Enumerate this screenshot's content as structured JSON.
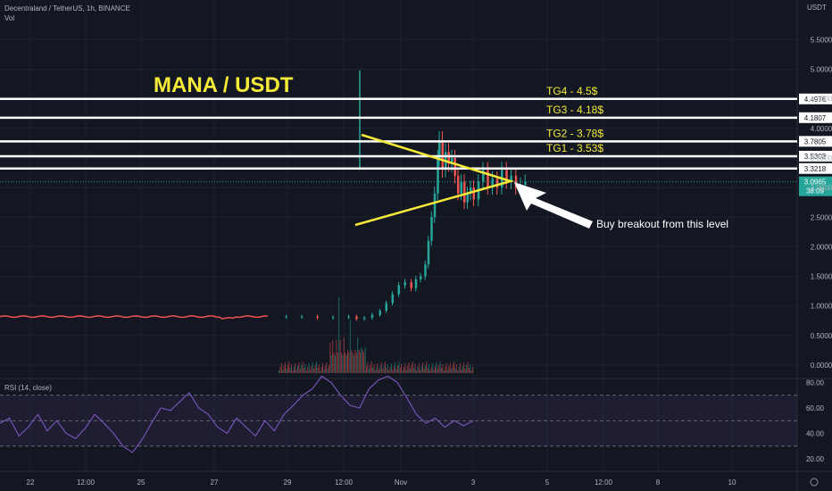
{
  "header": {
    "symbol": "Decentraland / TetherUS, 1h, BINANCE",
    "volume_label": "Vol",
    "currency": "USDT",
    "rsi_label": "RSI (14, close)"
  },
  "chart_data": [
    {
      "type": "line",
      "title": "MANA / USDT",
      "description_note": "",
      "price_axis": {
        "ticks": [
          "5.5000",
          "5.0000",
          "4.5000",
          "4.0000",
          "3.5000",
          "3.0000",
          "2.5000",
          "2.0000",
          "1.5000",
          "1.0000",
          "0.5000",
          "0.0000"
        ],
        "range": [
          0,
          5.5
        ]
      },
      "x_axis": {
        "ticks": [
          "22",
          "12:00",
          "25",
          "27",
          "29",
          "12:00",
          "Nov",
          "3",
          "5",
          "12:00",
          "8",
          "10"
        ]
      },
      "horizontal_levels": [
        {
          "value": 4.4976,
          "label": "4.4976",
          "annotation": "TG4 - 4.5$"
        },
        {
          "value": 4.1807,
          "label": "4.1807",
          "annotation": "TG3 - 4.18$"
        },
        {
          "value": 3.7805,
          "label": "3.7805",
          "annotation": "TG2 - 3.78$"
        },
        {
          "value": 3.5303,
          "label": "3.5303",
          "annotation": "TG1 - 3.53$"
        },
        {
          "value": 3.3218,
          "label": "3.3218",
          "annotation": ""
        }
      ],
      "current_price": {
        "value": 3.0965,
        "label": "3.0965",
        "countdown": "38:09",
        "color": "#26a69a"
      },
      "price_path": [
        [
          0,
          0.82
        ],
        [
          10,
          0.82
        ],
        [
          20,
          0.82
        ],
        [
          30,
          0.8
        ],
        [
          40,
          0.81
        ],
        [
          50,
          0.82
        ],
        [
          55,
          0.78
        ],
        [
          60,
          0.8
        ],
        [
          65,
          0.85
        ],
        [
          70,
          0.92
        ],
        [
          74,
          1.05
        ],
        [
          78,
          1.2
        ],
        [
          82,
          1.35
        ],
        [
          86,
          1.4
        ],
        [
          90,
          1.3
        ],
        [
          93,
          1.45
        ],
        [
          96,
          1.5
        ],
        [
          99,
          1.7
        ],
        [
          101,
          2.1
        ],
        [
          103,
          2.5
        ],
        [
          105,
          2.9
        ],
        [
          107,
          3.5
        ],
        [
          108,
          3.8
        ],
        [
          110,
          3.3
        ],
        [
          112,
          3.6
        ],
        [
          114,
          3.4
        ],
        [
          116,
          3.5
        ],
        [
          118,
          3.2
        ],
        [
          120,
          2.9
        ],
        [
          122,
          3.1
        ],
        [
          124,
          2.75
        ],
        [
          126,
          2.9
        ],
        [
          128,
          3.0
        ],
        [
          130,
          2.8
        ],
        [
          133,
          3.1
        ],
        [
          136,
          3.3
        ],
        [
          139,
          3.0
        ],
        [
          142,
          3.15
        ],
        [
          145,
          3.0
        ],
        [
          148,
          3.3
        ],
        [
          151,
          3.1
        ],
        [
          154,
          3.2
        ],
        [
          157,
          3.0
        ],
        [
          160,
          3.05
        ],
        [
          163,
          3.1
        ]
      ],
      "annotations": {
        "arrow_text": "Buy breakout from this level"
      },
      "colors": {
        "up": "#26a69a",
        "down": "#ef5350",
        "annotation": "#f5e93a",
        "level": "#ffffff"
      }
    },
    {
      "type": "line",
      "title": "RSI (14, close)",
      "y_axis_ticks": [
        "80.00",
        "60.00",
        "40.00",
        "20.00"
      ],
      "bands": {
        "upper": 70,
        "middle": 50,
        "lower": 30
      },
      "series": [
        {
          "values": [
            48,
            52,
            38,
            45,
            55,
            42,
            50,
            40,
            36,
            44,
            55,
            48,
            40,
            30,
            25,
            35,
            48,
            60,
            58,
            65,
            72,
            60,
            55,
            45,
            40,
            52,
            45,
            38,
            50,
            42,
            55,
            62,
            70,
            75,
            85,
            80,
            70,
            62,
            60,
            75,
            82,
            85,
            80,
            68,
            55,
            48,
            52,
            45,
            50,
            46,
            50
          ]
        }
      ],
      "color": "#7e57c2"
    }
  ]
}
